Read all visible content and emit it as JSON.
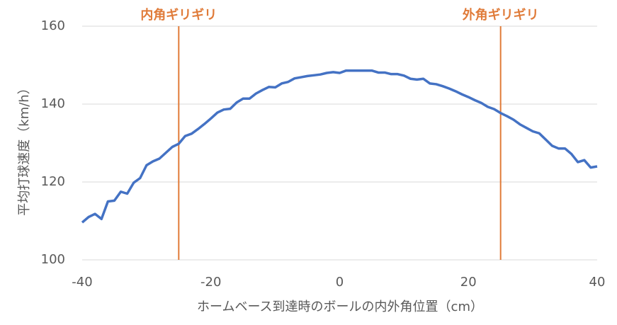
{
  "chart_data": {
    "type": "line",
    "x_label": "ホームベース到達時のボールの内外角位置（cm）",
    "y_label": "平均打球速度（km/h）",
    "x": [
      -40,
      -39,
      -38,
      -37,
      -36,
      -35,
      -34,
      -33,
      -32,
      -31,
      -30,
      -29,
      -28,
      -27,
      -26,
      -25,
      -24,
      -23,
      -22,
      -21,
      -20,
      -19,
      -18,
      -17,
      -16,
      -15,
      -14,
      -13,
      -12,
      -11,
      -10,
      -9,
      -8,
      -7,
      -6,
      -5,
      -4,
      -3,
      -2,
      -1,
      0,
      1,
      2,
      3,
      4,
      5,
      6,
      7,
      8,
      9,
      10,
      11,
      12,
      13,
      14,
      15,
      16,
      17,
      18,
      19,
      20,
      21,
      22,
      23,
      24,
      25,
      26,
      27,
      28,
      29,
      30,
      31,
      32,
      33,
      34,
      35,
      36,
      37,
      38,
      39,
      40
    ],
    "values": [
      109.6,
      111,
      111.8,
      110.5,
      115,
      115.2,
      117.5,
      117,
      119.8,
      121,
      124.3,
      125.3,
      126,
      127.5,
      129,
      129.8,
      131.8,
      132.4,
      133.6,
      134.9,
      136.3,
      137.8,
      138.6,
      138.8,
      140.4,
      141.4,
      141.4,
      142.7,
      143.6,
      144.4,
      144.3,
      145.3,
      145.7,
      146.6,
      146.9,
      147.2,
      147.4,
      147.6,
      148,
      148.2,
      148,
      148.6,
      148.6,
      148.6,
      148.6,
      148.6,
      148.1,
      148.1,
      147.7,
      147.7,
      147.3,
      146.5,
      146.3,
      146.5,
      145.3,
      145.1,
      144.6,
      144,
      143.3,
      142.5,
      141.8,
      141,
      140.3,
      139.3,
      138.7,
      137.7,
      136.9,
      136,
      134.8,
      133.9,
      133,
      132.5,
      130.9,
      129.3,
      128.6,
      128.6,
      127.2,
      125.1,
      125.6,
      123.7,
      124
    ],
    "color": "#4472c4",
    "xlim": [
      -40,
      40
    ],
    "xticks": [
      -40,
      -20,
      0,
      20,
      40
    ],
    "ylim": [
      100,
      160
    ],
    "yticks": [
      100,
      120,
      140,
      160
    ],
    "grid": true,
    "reference_lines": [
      {
        "value": -25,
        "label": "内角ギリギリ",
        "color": "#e07b39"
      },
      {
        "value": 25,
        "label": "外角ギリギリ",
        "color": "#e07b39"
      }
    ]
  }
}
